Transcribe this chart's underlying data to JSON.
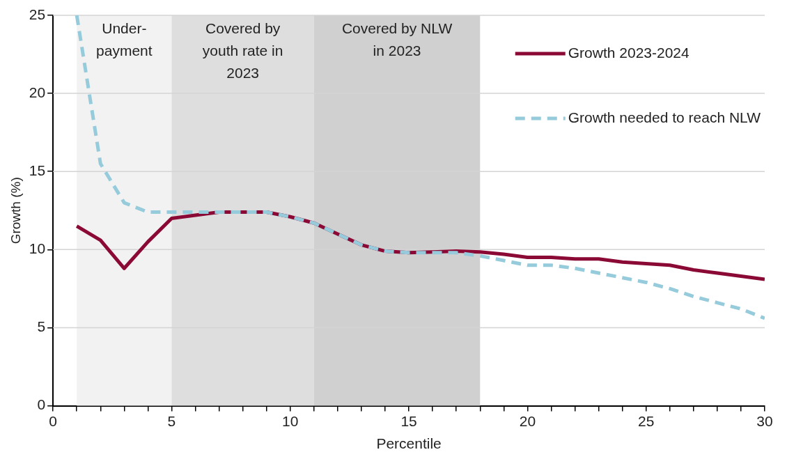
{
  "chart_data": {
    "type": "line",
    "xlabel": "Percentile",
    "ylabel": "Growth (%)",
    "x": [
      1,
      2,
      3,
      4,
      5,
      6,
      7,
      8,
      9,
      10,
      11,
      12,
      13,
      14,
      15,
      16,
      17,
      18,
      19,
      20,
      21,
      22,
      23,
      24,
      25,
      26,
      27,
      28,
      29,
      30
    ],
    "series": [
      {
        "name": "Growth 2023-2024",
        "color": "#8b0a35",
        "line_style": "solid",
        "values": [
          11.5,
          10.6,
          8.8,
          10.5,
          12.0,
          12.2,
          12.4,
          12.4,
          12.4,
          12.1,
          11.7,
          11.0,
          10.3,
          9.9,
          9.8,
          9.85,
          9.9,
          9.85,
          9.7,
          9.5,
          9.5,
          9.4,
          9.4,
          9.2,
          9.1,
          9.0,
          8.7,
          8.5,
          8.3,
          8.1
        ]
      },
      {
        "name": "Growth needed to reach NLW",
        "color": "#96cbdc",
        "line_style": "dashed",
        "values": [
          25,
          15.5,
          13.0,
          12.4,
          12.4,
          12.4,
          12.4,
          12.4,
          12.4,
          12.1,
          11.7,
          11.0,
          10.3,
          9.9,
          9.8,
          9.8,
          9.8,
          9.6,
          9.3,
          9.0,
          9.0,
          8.8,
          8.5,
          8.2,
          7.9,
          7.5,
          7.0,
          6.6,
          6.2,
          5.6
        ]
      }
    ],
    "bands": [
      {
        "axis": "x",
        "from": 1,
        "to": 5,
        "label": "Under-\npayment",
        "color": "#f2f2f2"
      },
      {
        "axis": "x",
        "from": 5,
        "to": 11,
        "label": "Covered by\nyouth rate in\n2023",
        "color": "#dedede"
      },
      {
        "axis": "x",
        "from": 11,
        "to": 18,
        "label": "Covered by NLW\nin 2023",
        "color": "#d0d0d0"
      }
    ],
    "xlim": [
      0,
      30
    ],
    "xticks": [
      0,
      {
        "value": 1,
        "label": null
      },
      {
        "value": 2,
        "label": null
      },
      {
        "value": 3,
        "label": null
      },
      {
        "value": 4,
        "label": null
      },
      5,
      {
        "value": 6,
        "label": null
      },
      {
        "value": 7,
        "label": null
      },
      {
        "value": 8,
        "label": null
      },
      {
        "value": 9,
        "label": null
      },
      10,
      {
        "value": 11,
        "label": null
      },
      {
        "value": 12,
        "label": null
      },
      {
        "value": 13,
        "label": null
      },
      {
        "value": 14,
        "label": null
      },
      15,
      {
        "value": 16,
        "label": null
      },
      {
        "value": 17,
        "label": null
      },
      {
        "value": 18,
        "label": null
      },
      {
        "value": 19,
        "label": null
      },
      20,
      {
        "value": 21,
        "label": null
      },
      {
        "value": 22,
        "label": null
      },
      {
        "value": 23,
        "label": null
      },
      {
        "value": 24,
        "label": null
      },
      25,
      {
        "value": 26,
        "label": null
      },
      {
        "value": 27,
        "label": null
      },
      {
        "value": 28,
        "label": null
      },
      {
        "value": 29,
        "label": null
      },
      30
    ],
    "ylim": [
      0,
      25
    ],
    "yticks": [
      0,
      5,
      10,
      15,
      20,
      25
    ],
    "grid": "y",
    "legend": "top right",
    "marker": "none"
  }
}
